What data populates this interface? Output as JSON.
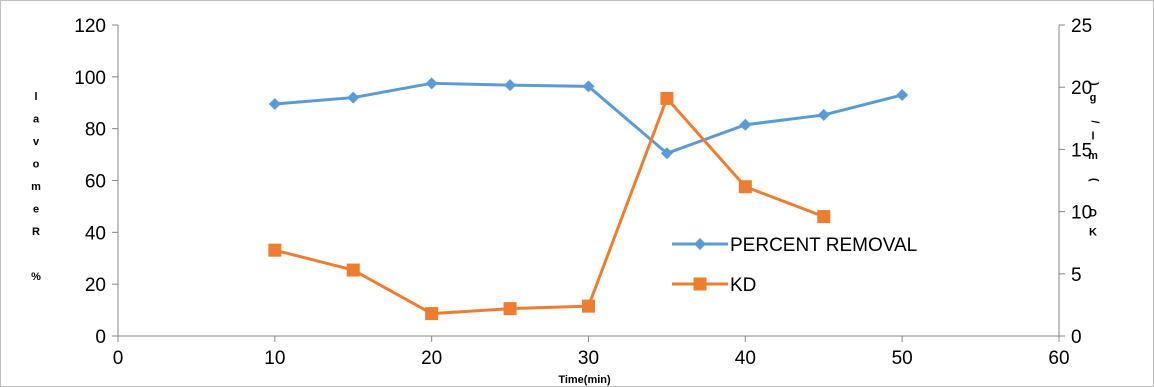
{
  "chart_data": {
    "type": "line",
    "title": "",
    "xlabel": "Time(min)",
    "ylabel_left": "% Removal",
    "ylabel_right": "KD (ml/g)",
    "xlim": [
      0,
      60
    ],
    "ylim_left": [
      0,
      120
    ],
    "ylim_right": [
      0,
      25
    ],
    "x_ticks": [
      "0",
      "10",
      "20",
      "30",
      "40",
      "50",
      "60"
    ],
    "y_left_ticks": [
      "0",
      "20",
      "40",
      "60",
      "80",
      "100",
      "120"
    ],
    "y_right_ticks": [
      "0",
      "5",
      "10",
      "15",
      "20",
      "25"
    ],
    "grid": false,
    "legend_position": "center-right",
    "series": [
      {
        "name": "PERCENT REMOVAL",
        "axis": "left",
        "marker": "diamond",
        "color": "#5B9BD5",
        "x": [
          10,
          15,
          20,
          25,
          30,
          35,
          40,
          45,
          50
        ],
        "y": [
          89.5,
          92,
          97.5,
          96.8,
          96.3,
          70.5,
          81.5,
          85.3,
          93
        ]
      },
      {
        "name": "KD",
        "axis": "right",
        "marker": "square",
        "color": "#ED7D31",
        "x": [
          10,
          15,
          20,
          25,
          30,
          35,
          40,
          45
        ],
        "y": [
          6.9,
          5.3,
          1.8,
          2.2,
          2.4,
          19.1,
          12.0,
          9.6
        ]
      }
    ]
  }
}
